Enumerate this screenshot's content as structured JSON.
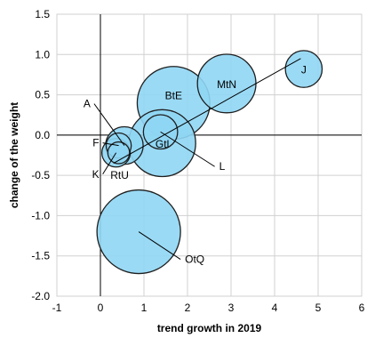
{
  "chart_data": {
    "type": "scatter",
    "title": "",
    "xlabel": "trend growth in 2019",
    "ylabel": "change of the weight",
    "xlim": [
      -1,
      6
    ],
    "ylim": [
      -2.0,
      1.5
    ],
    "xticks": [
      "-1",
      "0",
      "1",
      "2",
      "3",
      "4",
      "5",
      "6"
    ],
    "yticks": [
      "1.5",
      "1.0",
      "0.5",
      "0.0",
      "-0.5",
      "-1.0",
      "-1.5",
      "-2.0"
    ],
    "grid": true,
    "bubbles": [
      {
        "label": "OtQ",
        "x": 0.88,
        "y": -1.2,
        "size": 1.0
      },
      {
        "label": "BtE",
        "x": 1.68,
        "y": 0.4,
        "size": 0.87
      },
      {
        "label": "Gtl",
        "x": 1.42,
        "y": -0.1,
        "size": 0.8
      },
      {
        "label": "MtN",
        "x": 2.9,
        "y": 0.64,
        "size": 0.7
      },
      {
        "label": "J",
        "x": 4.67,
        "y": 0.82,
        "size": 0.44
      },
      {
        "label": "L",
        "x": 1.38,
        "y": 0.04,
        "size": 0.41
      },
      {
        "label": "A",
        "x": 0.55,
        "y": -0.13,
        "size": 0.45
      },
      {
        "label": "F",
        "x": 0.42,
        "y": -0.13,
        "size": 0.3
      },
      {
        "label": "K",
        "x": 0.36,
        "y": -0.22,
        "size": 0.34
      },
      {
        "label": "RtU",
        "x": 0.42,
        "y": -0.22,
        "size": 0.26
      }
    ],
    "trendline": {
      "x": [
        0.3,
        4.6
      ],
      "y": [
        -0.35,
        0.95
      ]
    }
  }
}
